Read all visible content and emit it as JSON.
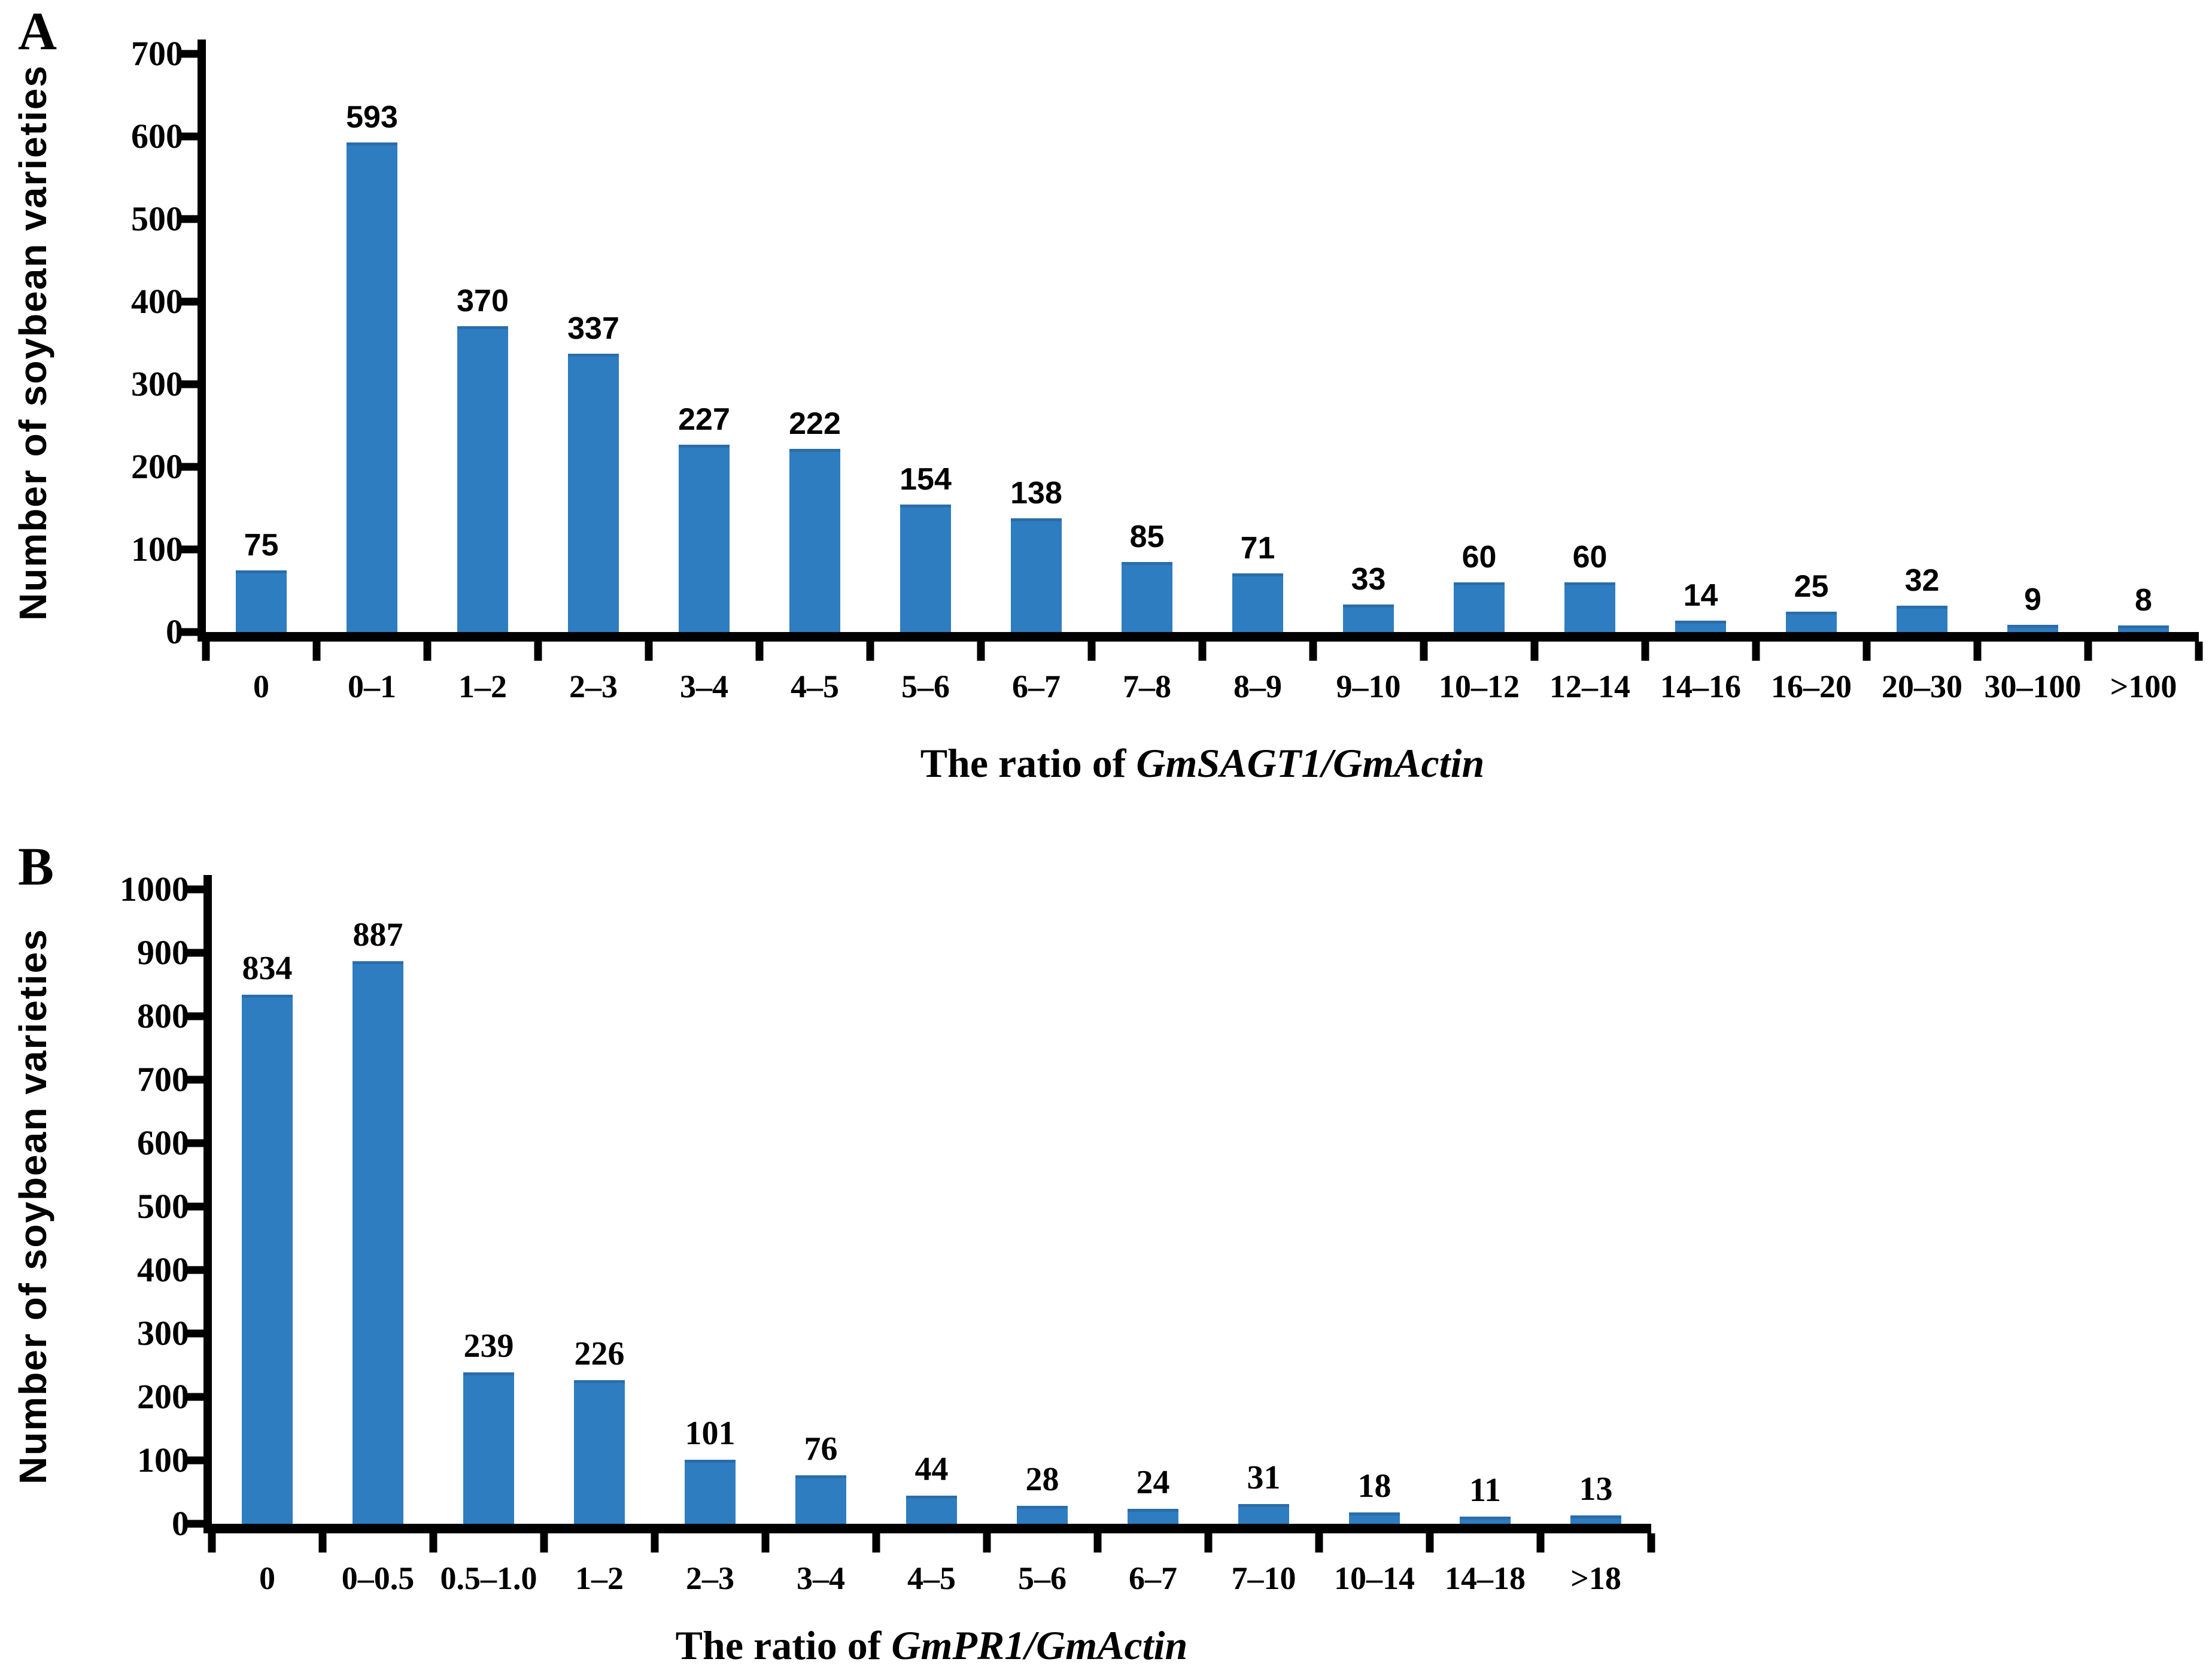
{
  "panels": [
    {
      "letter": "A",
      "y_axis_title": "Number of soybean varieties",
      "x_axis_title_prefix": "The ratio of ",
      "x_axis_title_gene": "GmSAGT1/GmActin"
    },
    {
      "letter": "B",
      "y_axis_title": "Number of soybean varieties",
      "x_axis_title_prefix": "The ratio of ",
      "x_axis_title_gene": "GmPR1/GmActin"
    }
  ],
  "chart_data": [
    {
      "type": "bar",
      "panel": "A",
      "title": "",
      "categories": [
        "0",
        "0–1",
        "1–2",
        "2–3",
        "3–4",
        "4–5",
        "5–6",
        "6–7",
        "7–8",
        "8–9",
        "9–10",
        "10–12",
        "12–14",
        "14–16",
        "16–20",
        "20–30",
        "30–100",
        ">100"
      ],
      "values": [
        75,
        593,
        370,
        337,
        227,
        222,
        154,
        138,
        85,
        71,
        33,
        60,
        60,
        14,
        25,
        32,
        9,
        8
      ],
      "xlabel": "The ratio of GmSAGT1/GmActin",
      "ylabel": "Number of soybean varieties",
      "ylim": [
        0,
        700
      ],
      "ytick_step": 100,
      "grid": false,
      "legend_position": "none",
      "bar_color": "#2E7DC1"
    },
    {
      "type": "bar",
      "panel": "B",
      "title": "",
      "categories": [
        "0",
        "0–0.5",
        "0.5–1.0",
        "1–2",
        "2–3",
        "3–4",
        "4–5",
        "5–6",
        "6–7",
        "7–10",
        "10–14",
        "14–18",
        ">18"
      ],
      "values": [
        834,
        887,
        239,
        226,
        101,
        76,
        44,
        28,
        24,
        31,
        18,
        11,
        13
      ],
      "xlabel": "The ratio of GmPR1/GmActin",
      "ylabel": "Number of soybean varieties",
      "ylim": [
        0,
        1000
      ],
      "ytick_step": 100,
      "grid": false,
      "legend_position": "none",
      "bar_color": "#2E7DC1"
    }
  ]
}
